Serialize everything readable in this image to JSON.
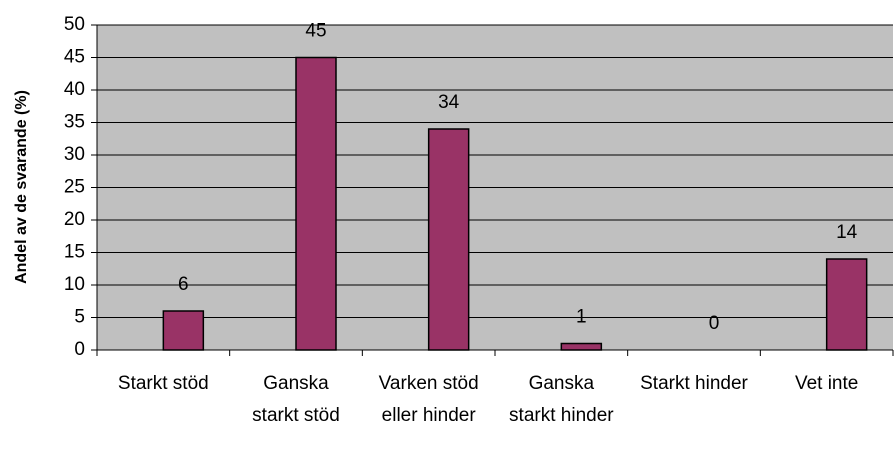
{
  "chart_data": {
    "type": "bar",
    "y_label": "Andel av de svarande (%)",
    "categories": [
      "Starkt stöd",
      "Ganska starkt stöd",
      "Varken stöd eller hinder",
      "Ganska starkt hinder",
      "Starkt hinder",
      "Vet inte"
    ],
    "values": [
      6,
      45,
      34,
      1,
      0,
      14
    ],
    "color": "#993366",
    "ylim": [
      0,
      50
    ],
    "yticks": [
      0,
      5,
      10,
      15,
      20,
      25,
      30,
      35,
      40,
      45,
      50
    ],
    "grid": true
  }
}
